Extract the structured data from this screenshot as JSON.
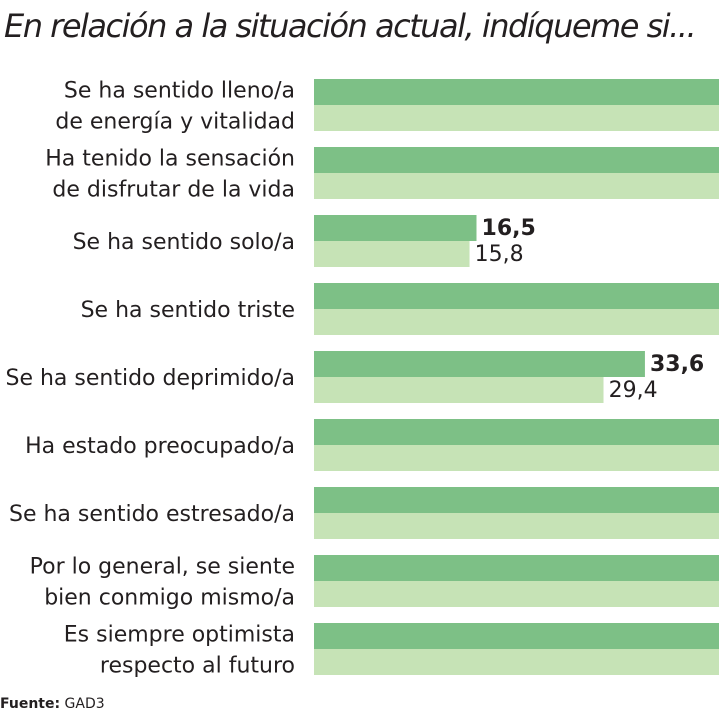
{
  "chart_data": {
    "type": "bar",
    "orientation": "horizontal",
    "title": "En relación a la situación actual, indíqueme si...",
    "categories": [
      [
        "Se ha sentido lleno/a",
        "de energía y vitalidad"
      ],
      [
        "Ha tenido la sensación",
        "de disfrutar de la vida"
      ],
      [
        "Se ha sentido solo/a"
      ],
      [
        "Se ha sentido triste"
      ],
      [
        "Se ha sentido deprimido/a"
      ],
      [
        "Ha estado preocupado/a"
      ],
      [
        "Se ha sentido estresado/a"
      ],
      [
        "Por lo general, se siente",
        "bien conmigo mismo/a"
      ],
      [
        "Es siempre optimista",
        "respecto al futuro"
      ]
    ],
    "series": [
      {
        "name": "series-1",
        "color": "#7dc086",
        "values": [
          null,
          null,
          16.5,
          null,
          33.6,
          null,
          null,
          null,
          null
        ],
        "labels": [
          null,
          null,
          "16,5",
          null,
          "33,6",
          null,
          null,
          null,
          null
        ]
      },
      {
        "name": "series-2",
        "color": "#c6e3b6",
        "values": [
          null,
          null,
          15.8,
          null,
          29.4,
          null,
          null,
          null,
          null
        ],
        "labels": [
          null,
          null,
          "15,8",
          null,
          "29,4",
          null,
          null,
          null,
          null
        ]
      }
    ],
    "cropped_value": "truncated",
    "xlim": [
      0,
      100
    ],
    "grid": false,
    "legend": "none"
  },
  "source": {
    "label": "Fuente:",
    "text": "GAD3"
  }
}
